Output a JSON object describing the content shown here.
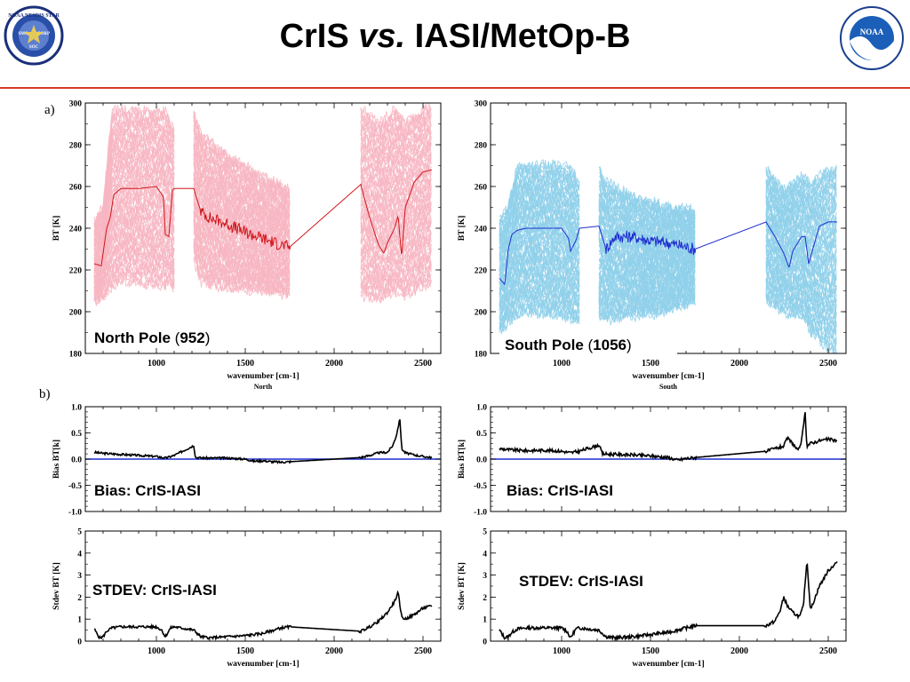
{
  "header": {
    "title_part1": "CrIS",
    "title_part2": "vs.",
    "title_part3": "IASI/MetOp-B",
    "logo_left_text": "NOAA NESDIS STAR",
    "logo_left_inner_1": "SMC",
    "logo_left_inner_2": "CORP",
    "logo_left_inner_3": "SOC",
    "logo_right_text": "NOAA"
  },
  "colors": {
    "rule": "#d93a2b",
    "north_spectra": "#f7b6c2",
    "north_mean": "#d0161b",
    "south_spectra": "#8fd0ea",
    "south_mean": "#1f2fd0",
    "zero_line": "#1f2fd0",
    "line": "#000000"
  },
  "panel_labels": {
    "a": "a)",
    "b": "b)"
  },
  "chart_data": [
    {
      "id": "bt_north",
      "type": "line",
      "xlabel": "wavenumber [cm-1]",
      "ylabel": "BT [K]",
      "subtitle": "North",
      "xlim": [
        600,
        2600
      ],
      "ylim": [
        180,
        300
      ],
      "xticks": [
        1000,
        1500,
        2000,
        2500
      ],
      "yticks": [
        180,
        200,
        220,
        240,
        260,
        280,
        300
      ],
      "label_name": "North Pole",
      "label_count": "952",
      "spectra_envelope": {
        "x": [
          650,
          700,
          750,
          800,
          1050,
          1080,
          1100,
          1210,
          1250,
          1400,
          1600,
          1750,
          2150,
          2250,
          2350,
          2400,
          2500,
          2550
        ],
        "ymin": [
          205,
          207,
          212,
          215,
          212,
          215,
          210,
          225,
          214,
          212,
          210,
          208,
          208,
          206,
          210,
          208,
          212,
          213
        ],
        "ymax": [
          243,
          250,
          296,
          296,
          296,
          290,
          288,
          296,
          285,
          275,
          265,
          258,
          297,
          290,
          297,
          290,
          297,
          298
        ]
      },
      "mean": {
        "x": [
          650,
          690,
          720,
          740,
          760,
          800,
          900,
          1000,
          1040,
          1050,
          1070,
          1090,
          1100,
          1210,
          1250,
          1300,
          1400,
          1500,
          1600,
          1700,
          1750,
          2150,
          2200,
          2250,
          2280,
          2300,
          2340,
          2360,
          2380,
          2400,
          2450,
          2500,
          2550
        ],
        "y": [
          223,
          222,
          240,
          245,
          256,
          259,
          259,
          260,
          255,
          237,
          236,
          258,
          259,
          259,
          248,
          245,
          242,
          238,
          235,
          232,
          231,
          261,
          245,
          232,
          228,
          233,
          240,
          246,
          226,
          250,
          262,
          267,
          268
        ]
      }
    },
    {
      "id": "bt_south",
      "type": "line",
      "xlabel": "wavenumber [cm-1]",
      "ylabel": "BT [K]",
      "subtitle": "South",
      "xlim": [
        600,
        2600
      ],
      "ylim": [
        180,
        300
      ],
      "xticks": [
        1000,
        1500,
        2000,
        2500
      ],
      "yticks": [
        180,
        200,
        220,
        240,
        260,
        280,
        300
      ],
      "label_name": "South Pole",
      "label_count": "1056",
      "spectra_envelope": {
        "x": [
          650,
          700,
          750,
          800,
          1000,
          1050,
          1100,
          1210,
          1250,
          1400,
          1600,
          1750,
          2150,
          2250,
          2350,
          2400,
          2500,
          2550
        ],
        "ymin": [
          190,
          195,
          198,
          200,
          198,
          196,
          195,
          198,
          196,
          198,
          200,
          205,
          205,
          200,
          198,
          190,
          182,
          180
        ],
        "ymax": [
          244,
          250,
          270,
          270,
          270,
          268,
          262,
          268,
          262,
          255,
          250,
          248,
          268,
          258,
          265,
          262,
          268,
          270
        ]
      },
      "mean": {
        "x": [
          650,
          680,
          700,
          720,
          750,
          800,
          900,
          1000,
          1040,
          1050,
          1080,
          1100,
          1210,
          1250,
          1300,
          1400,
          1500,
          1600,
          1700,
          1750,
          2150,
          2200,
          2250,
          2280,
          2300,
          2350,
          2370,
          2390,
          2450,
          2500,
          2550
        ],
        "y": [
          216,
          213,
          230,
          237,
          239,
          240,
          240,
          240,
          235,
          229,
          234,
          240,
          241,
          230,
          236,
          236,
          234,
          233,
          231,
          230,
          243,
          236,
          228,
          221,
          229,
          236,
          236,
          223,
          241,
          243,
          243
        ]
      }
    },
    {
      "id": "bias_north",
      "type": "line",
      "ylabel": "Bias BT[k]",
      "label": "Bias: CrIS-IASI",
      "xlim": [
        600,
        2600
      ],
      "ylim": [
        -1.0,
        1.0
      ],
      "yticks": [
        -1.0,
        -0.5,
        0.0,
        0.5,
        1.0
      ],
      "x": [
        650,
        700,
        800,
        900,
        1000,
        1050,
        1100,
        1210,
        1220,
        1300,
        1400,
        1500,
        1550,
        1600,
        1650,
        1700,
        1750,
        2150,
        2200,
        2250,
        2300,
        2330,
        2350,
        2370,
        2380,
        2400,
        2450,
        2500,
        2550
      ],
      "y": [
        0.13,
        0.11,
        0.09,
        0.07,
        0.05,
        0.02,
        0.07,
        0.26,
        0.03,
        0.02,
        0.02,
        0.0,
        -0.04,
        -0.03,
        -0.05,
        -0.06,
        -0.05,
        0.03,
        0.07,
        0.12,
        0.13,
        0.26,
        0.45,
        0.77,
        0.2,
        0.12,
        0.08,
        0.05,
        0.03
      ],
      "zero_line": 0.0
    },
    {
      "id": "bias_south",
      "type": "line",
      "ylabel": "Bias BT[k]",
      "label": "Bias: CrIS-IASI",
      "xlim": [
        600,
        2600
      ],
      "ylim": [
        -1.0,
        1.0
      ],
      "yticks": [
        -1.0,
        -0.5,
        0.0,
        0.5,
        1.0
      ],
      "x": [
        650,
        700,
        800,
        900,
        1000,
        1050,
        1100,
        1210,
        1230,
        1300,
        1400,
        1500,
        1600,
        1650,
        1700,
        1750,
        2150,
        2200,
        2250,
        2270,
        2300,
        2330,
        2350,
        2370,
        2380,
        2400,
        2450,
        2500,
        2550
      ],
      "y": [
        0.2,
        0.18,
        0.16,
        0.17,
        0.15,
        0.12,
        0.15,
        0.27,
        0.1,
        0.09,
        0.08,
        0.06,
        0.03,
        -0.02,
        0.01,
        0.03,
        0.15,
        0.2,
        0.25,
        0.4,
        0.3,
        0.15,
        0.35,
        0.88,
        0.25,
        0.3,
        0.35,
        0.38,
        0.35
      ],
      "zero_line": 0.0
    },
    {
      "id": "stdev_north",
      "type": "line",
      "xlabel": "wavenumber [cm-1]",
      "ylabel": "Stdev BT [K]",
      "label": "STDEV: CrIS-IASI",
      "xlim": [
        600,
        2600
      ],
      "ylim": [
        0,
        5
      ],
      "xticks": [
        1000,
        1500,
        2000,
        2500
      ],
      "yticks": [
        0,
        1,
        2,
        3,
        4,
        5
      ],
      "x": [
        650,
        680,
        700,
        720,
        750,
        800,
        900,
        1000,
        1030,
        1050,
        1080,
        1100,
        1210,
        1250,
        1300,
        1400,
        1500,
        1600,
        1700,
        1750,
        2150,
        2200,
        2250,
        2300,
        2340,
        2360,
        2380,
        2400,
        2450,
        2500,
        2550
      ],
      "y": [
        0.55,
        0.15,
        0.2,
        0.45,
        0.6,
        0.65,
        0.65,
        0.65,
        0.5,
        0.2,
        0.6,
        0.65,
        0.5,
        0.2,
        0.15,
        0.2,
        0.25,
        0.35,
        0.6,
        0.65,
        0.45,
        0.65,
        0.9,
        1.3,
        1.8,
        2.2,
        1.1,
        1.0,
        1.2,
        1.5,
        1.6
      ]
    },
    {
      "id": "stdev_south",
      "type": "line",
      "xlabel": "wavenumber [cm-1]",
      "ylabel": "Stdev BT [K]",
      "label": "STDEV: CrIS-IASI",
      "xlim": [
        600,
        2600
      ],
      "ylim": [
        0,
        5
      ],
      "xticks": [
        1000,
        1500,
        2000,
        2500
      ],
      "yticks": [
        0,
        1,
        2,
        3,
        4,
        5
      ],
      "x": [
        650,
        680,
        700,
        720,
        750,
        800,
        900,
        1000,
        1030,
        1050,
        1080,
        1100,
        1210,
        1250,
        1300,
        1400,
        1500,
        1600,
        1700,
        1750,
        2150,
        2200,
        2230,
        2250,
        2270,
        2300,
        2340,
        2360,
        2380,
        2400,
        2450,
        2500,
        2550
      ],
      "y": [
        0.5,
        0.15,
        0.2,
        0.4,
        0.55,
        0.6,
        0.6,
        0.6,
        0.45,
        0.15,
        0.55,
        0.6,
        0.5,
        0.2,
        0.15,
        0.2,
        0.3,
        0.4,
        0.6,
        0.7,
        0.7,
        0.9,
        1.4,
        2.0,
        1.6,
        1.3,
        1.1,
        1.6,
        3.7,
        1.4,
        2.5,
        3.2,
        3.6
      ]
    }
  ]
}
